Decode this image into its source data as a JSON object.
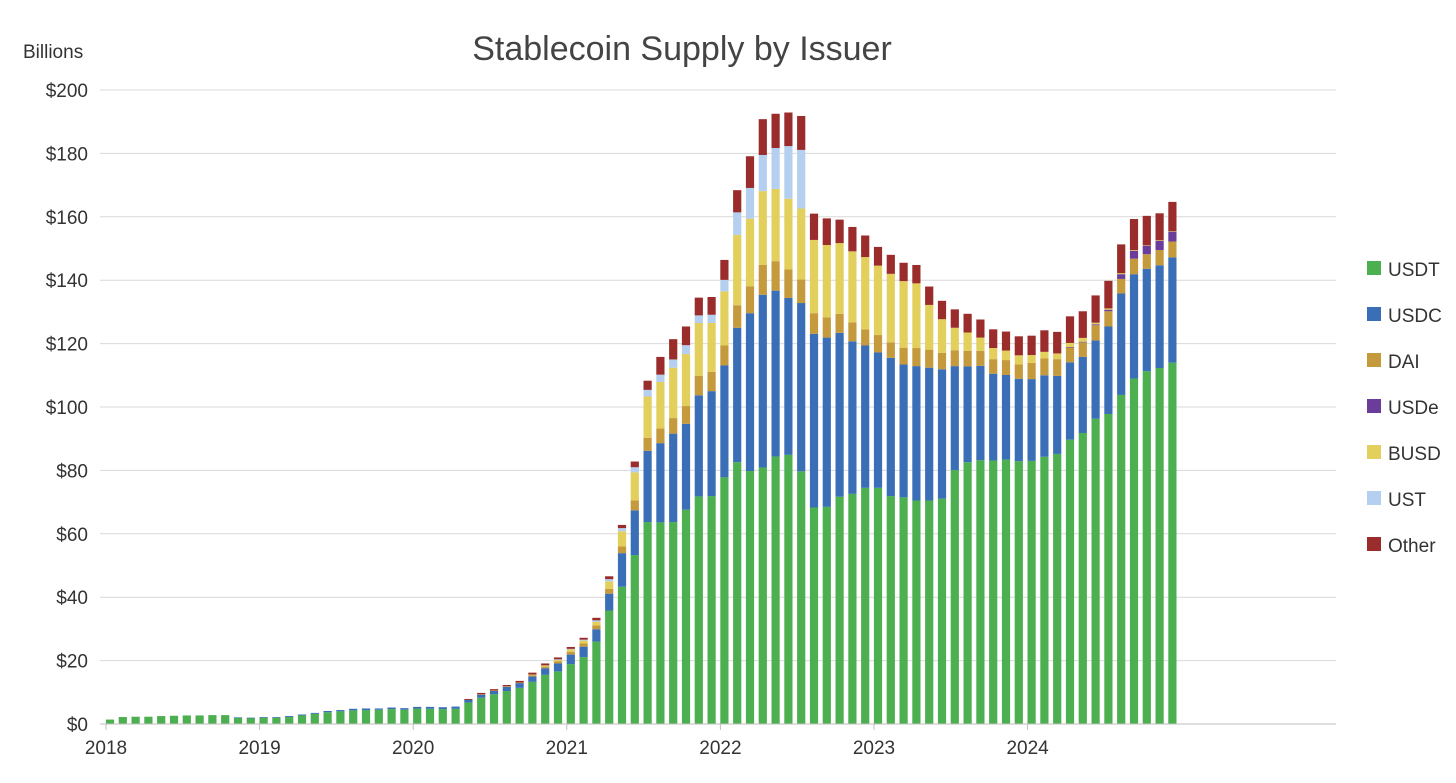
{
  "chart_data": {
    "type": "bar",
    "stacked": true,
    "title": "Stablecoin Supply by Issuer",
    "ylabel": "Billions",
    "xlabel": "",
    "ylim": [
      0,
      200
    ],
    "y_ticks": [
      0,
      20,
      40,
      60,
      80,
      100,
      120,
      140,
      160,
      180,
      200
    ],
    "y_tick_labels": [
      "$0",
      "$20",
      "$40",
      "$60",
      "$80",
      "$100",
      "$120",
      "$140",
      "$160",
      "$180",
      "$200"
    ],
    "x_tick_labels": [
      "2018",
      "2019",
      "2020",
      "2021",
      "2022",
      "2023",
      "2024"
    ],
    "x_start_year": 2018,
    "months_per_bar": 1,
    "grid": true,
    "legend_position": "right",
    "series_colors": {
      "USDT": "#4caf50",
      "USDC": "#3a6fb7",
      "DAI": "#c49a3d",
      "USDe": "#6a3d9a",
      "BUSD": "#e3cf5c",
      "UST": "#b4cff0",
      "Other": "#9b2c2c"
    },
    "series": [
      {
        "name": "USDT",
        "values": [
          1.4,
          2.2,
          2.3,
          2.3,
          2.5,
          2.6,
          2.7,
          2.7,
          2.8,
          2.8,
          2.0,
          1.9,
          2.0,
          2.0,
          2.2,
          2.7,
          3.2,
          3.7,
          4.0,
          4.3,
          4.4,
          4.5,
          4.7,
          4.5,
          4.9,
          4.8,
          4.7,
          4.8,
          6.8,
          8.3,
          9.4,
          10.4,
          11.4,
          13.3,
          15.5,
          16.6,
          18.9,
          21.1,
          26.0,
          35.8,
          43.3,
          53.3,
          63.7,
          63.6,
          63.7,
          67.6,
          71.8,
          71.9,
          77.8,
          82.6,
          79.8,
          80.9,
          84.4,
          84.9,
          79.7,
          68.3,
          68.5,
          71.7,
          72.6,
          74.5,
          74.5,
          71.9,
          71.5,
          70.5,
          70.5,
          71.1,
          80.1,
          82.6,
          83.2,
          83.1,
          83.4,
          82.9,
          83.0,
          84.3,
          85.2,
          89.7,
          91.8,
          96.3,
          97.8,
          103.8,
          109.0,
          111.3,
          112.3,
          114.0
        ]
      },
      {
        "name": "USDC",
        "values": [
          0,
          0,
          0,
          0,
          0,
          0,
          0,
          0,
          0,
          0,
          0.1,
          0.1,
          0.2,
          0.2,
          0.3,
          0.3,
          0.3,
          0.4,
          0.4,
          0.5,
          0.5,
          0.4,
          0.5,
          0.5,
          0.5,
          0.6,
          0.6,
          0.7,
          0.8,
          1.0,
          1.1,
          1.3,
          1.5,
          1.7,
          2.1,
          2.5,
          3.0,
          3.3,
          3.9,
          5.3,
          10.6,
          14.1,
          22.5,
          25.0,
          27.9,
          27.1,
          31.9,
          33.1,
          35.3,
          42.4,
          49.8,
          54.5,
          52.3,
          49.5,
          53.1,
          54.8,
          53.4,
          51.7,
          48.1,
          44.9,
          42.7,
          43.6,
          41.9,
          42.4,
          41.9,
          40.8,
          32.8,
          30.2,
          29.8,
          27.4,
          26.7,
          26.0,
          25.8,
          25.7,
          24.6,
          24.4,
          24.0,
          24.7,
          27.6,
          32.0,
          32.9,
          32.3,
          32.4,
          33.2
        ]
      },
      {
        "name": "DAI",
        "values": [
          0,
          0,
          0,
          0,
          0,
          0,
          0,
          0,
          0,
          0,
          0,
          0,
          0,
          0,
          0,
          0,
          0,
          0,
          0,
          0,
          0,
          0,
          0,
          0,
          0,
          0,
          0,
          0,
          0,
          0.1,
          0.1,
          0.2,
          0.2,
          0.4,
          0.5,
          0.7,
          0.9,
          1.0,
          1.2,
          1.5,
          2.1,
          3.1,
          4.1,
          4.6,
          4.9,
          5.6,
          6.1,
          6.1,
          6.3,
          7.1,
          8.5,
          9.4,
          9.3,
          9.0,
          7.4,
          6.5,
          6.4,
          6.0,
          6.0,
          5.1,
          5.5,
          4.9,
          5.3,
          5.7,
          5.7,
          5.2,
          5.0,
          4.9,
          4.7,
          4.6,
          4.7,
          4.5,
          5.1,
          5.3,
          5.3,
          4.7,
          4.6,
          4.8,
          4.8,
          4.6,
          4.9,
          4.6,
          4.8,
          5.0
        ]
      },
      {
        "name": "USDe",
        "values": [
          0,
          0,
          0,
          0,
          0,
          0,
          0,
          0,
          0,
          0,
          0,
          0,
          0,
          0,
          0,
          0,
          0,
          0,
          0,
          0,
          0,
          0,
          0,
          0,
          0,
          0,
          0,
          0,
          0,
          0,
          0,
          0,
          0,
          0,
          0,
          0,
          0,
          0,
          0,
          0,
          0,
          0,
          0,
          0,
          0,
          0,
          0,
          0,
          0,
          0,
          0,
          0,
          0,
          0,
          0,
          0,
          0,
          0,
          0,
          0,
          0,
          0,
          0,
          0,
          0,
          0,
          0,
          0,
          0,
          0,
          0,
          0,
          0,
          0,
          0,
          0.1,
          0.2,
          0.3,
          0.5,
          1.5,
          2.5,
          2.8,
          3.0,
          3.2
        ]
      },
      {
        "name": "BUSD",
        "values": [
          0,
          0,
          0,
          0,
          0,
          0,
          0,
          0,
          0,
          0,
          0,
          0,
          0,
          0,
          0,
          0,
          0,
          0,
          0,
          0,
          0,
          0,
          0,
          0,
          0,
          0,
          0,
          0,
          0,
          0,
          0,
          0,
          0,
          0.2,
          0.4,
          0.5,
          0.7,
          0.9,
          1.1,
          2.4,
          4.8,
          8.9,
          13.0,
          14.7,
          15.9,
          16.4,
          16.7,
          15.4,
          17.1,
          22.2,
          21.3,
          23.3,
          22.8,
          22.3,
          22.4,
          23.1,
          22.8,
          22.3,
          22.4,
          22.8,
          21.9,
          21.6,
          21.0,
          20.4,
          14.1,
          10.6,
          7.1,
          5.8,
          4.2,
          3.5,
          3.0,
          2.9,
          2.5,
          2.1,
          1.8,
          1.3,
          1.2,
          0.5,
          0.4,
          0.3,
          0.2,
          0.1,
          0.1,
          0.1
        ]
      },
      {
        "name": "UST",
        "values": [
          0,
          0,
          0,
          0,
          0,
          0,
          0,
          0,
          0,
          0,
          0,
          0,
          0,
          0,
          0,
          0,
          0,
          0,
          0,
          0,
          0,
          0,
          0,
          0,
          0,
          0,
          0,
          0,
          0,
          0,
          0,
          0,
          0,
          0,
          0,
          0.1,
          0.2,
          0.3,
          0.5,
          0.7,
          1.0,
          1.6,
          2.1,
          2.3,
          2.6,
          2.8,
          2.4,
          2.6,
          3.6,
          7.1,
          9.7,
          11.4,
          12.9,
          16.6,
          18.5,
          0,
          0,
          0,
          0,
          0,
          0,
          0,
          0,
          0,
          0,
          0,
          0,
          0,
          0,
          0,
          0,
          0,
          0,
          0,
          0,
          0,
          0,
          0,
          0,
          0,
          0,
          0,
          0,
          0
        ]
      },
      {
        "name": "Other",
        "values": [
          0,
          0,
          0,
          0,
          0,
          0,
          0,
          0,
          0,
          0,
          0,
          0,
          0,
          0,
          0,
          0,
          0,
          0,
          0,
          0,
          0,
          0,
          0,
          0,
          0,
          0,
          0,
          0,
          0.3,
          0.4,
          0.4,
          0.4,
          0.5,
          0.6,
          0.6,
          0.6,
          0.6,
          0.6,
          0.8,
          0.9,
          1.0,
          1.8,
          2.9,
          5.6,
          6.4,
          5.9,
          5.6,
          5.6,
          6.3,
          7.0,
          10.0,
          11.3,
          10.8,
          10.6,
          10.7,
          8.3,
          8.4,
          7.4,
          7.7,
          6.8,
          5.9,
          6.0,
          5.8,
          5.8,
          5.8,
          5.8,
          5.8,
          5.9,
          5.7,
          5.9,
          6.0,
          6.0,
          6.1,
          6.8,
          6.8,
          8.4,
          8.4,
          8.6,
          8.7,
          9.1,
          9.8,
          9.2,
          8.5,
          9.2
        ]
      }
    ]
  }
}
